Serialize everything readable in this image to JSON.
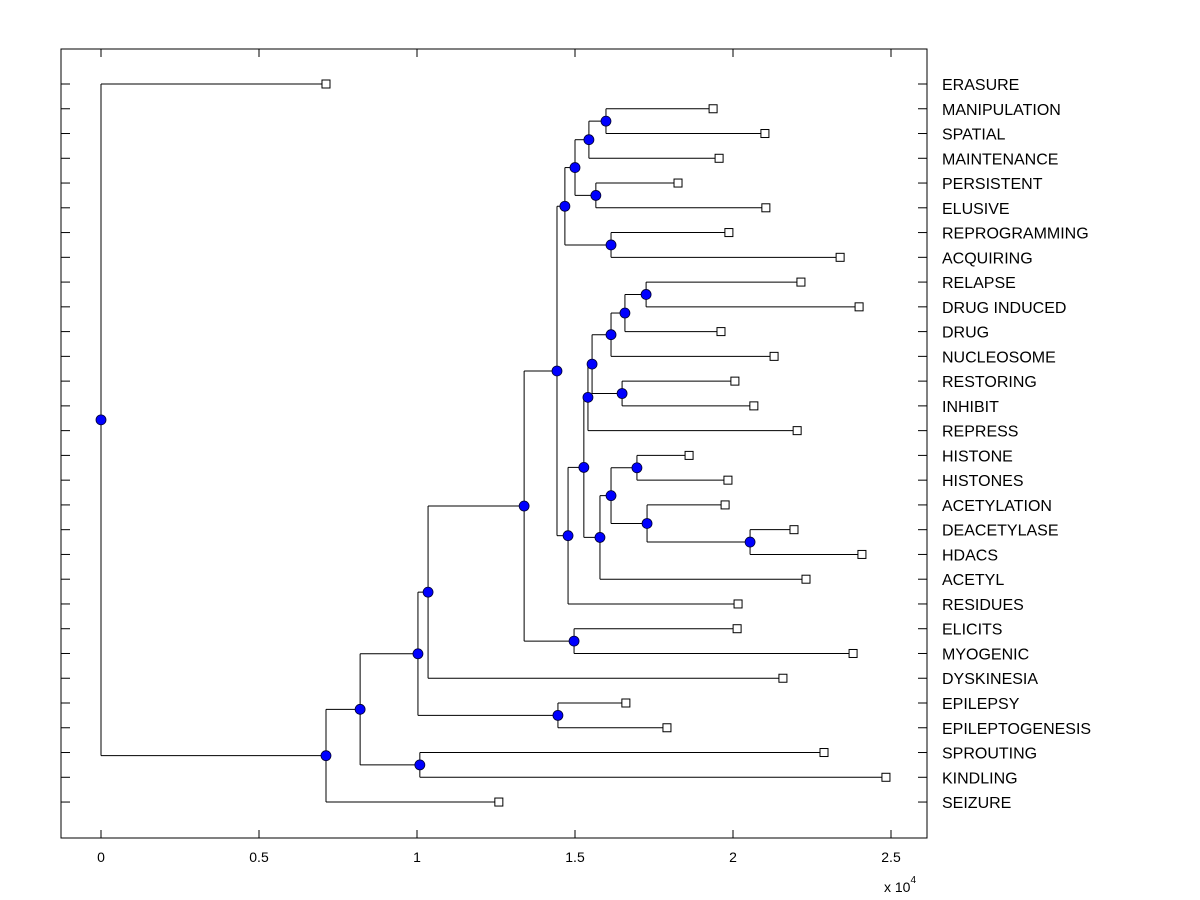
{
  "chart_data": {
    "type": "dendrogram",
    "title": "",
    "xlabel": "",
    "ylabel": "",
    "x_multiplier_label": "x 10",
    "x_multiplier_exponent": "4",
    "xlim": [
      -0.125,
      2.6
    ],
    "xticks": [
      0,
      0.5,
      1,
      1.5,
      2,
      2.5
    ],
    "xtick_labels": [
      "0",
      "0.5",
      "1",
      "1.5",
      "2",
      "2.5"
    ],
    "grid": false,
    "node_marker_color": "#0000ff",
    "leaf_marker": "open-square",
    "leaves": [
      {
        "label": "ERASURE",
        "x": 0.712
      },
      {
        "label": "MANIPULATION",
        "x": 1.937
      },
      {
        "label": "SPATIAL",
        "x": 2.101
      },
      {
        "label": "MAINTENANCE",
        "x": 1.956
      },
      {
        "label": "PERSISTENT",
        "x": 1.826
      },
      {
        "label": "ELUSIVE",
        "x": 2.104
      },
      {
        "label": "REPROGRAMMING",
        "x": 1.987
      },
      {
        "label": "ACQUIRING",
        "x": 2.339
      },
      {
        "label": "RELAPSE",
        "x": 2.215
      },
      {
        "label": "DRUG INDUCED",
        "x": 2.399
      },
      {
        "label": "DRUG",
        "x": 1.962
      },
      {
        "label": "NUCLEOSOME",
        "x": 2.13
      },
      {
        "label": "RESTORING",
        "x": 2.006
      },
      {
        "label": "INHIBIT",
        "x": 2.066
      },
      {
        "label": "REPRESS",
        "x": 2.203
      },
      {
        "label": "HISTONE",
        "x": 1.861
      },
      {
        "label": "HISTONES",
        "x": 1.984
      },
      {
        "label": "ACETYLATION",
        "x": 1.975
      },
      {
        "label": "DEACETYLASE",
        "x": 2.193
      },
      {
        "label": "HDACS",
        "x": 2.408
      },
      {
        "label": "ACETYL",
        "x": 2.231
      },
      {
        "label": "RESIDUES",
        "x": 2.016
      },
      {
        "label": "ELICITS",
        "x": 2.013
      },
      {
        "label": "MYOGENIC",
        "x": 2.38
      },
      {
        "label": "DYSKINESIA",
        "x": 2.158
      },
      {
        "label": "EPILEPSY",
        "x": 1.661
      },
      {
        "label": "EPILEPTOGENESIS",
        "x": 1.791
      },
      {
        "label": "SPROUTING",
        "x": 2.288
      },
      {
        "label": "KINDLING",
        "x": 2.484
      },
      {
        "label": "SEIZURE",
        "x": 1.259
      }
    ],
    "nodes": [
      {
        "id": "n1",
        "x": 1.598,
        "children": [
          "MANIPULATION",
          "SPATIAL"
        ]
      },
      {
        "id": "n2",
        "x": 1.544,
        "children": [
          "n1",
          "MAINTENANCE"
        ]
      },
      {
        "id": "n3",
        "x": 1.566,
        "children": [
          "PERSISTENT",
          "ELUSIVE"
        ]
      },
      {
        "id": "n4",
        "x": 1.5,
        "children": [
          "n2",
          "n3"
        ]
      },
      {
        "id": "n5",
        "x": 1.614,
        "children": [
          "REPROGRAMMING",
          "ACQUIRING"
        ]
      },
      {
        "id": "n6",
        "x": 1.468,
        "children": [
          "n4",
          "n5"
        ]
      },
      {
        "id": "n7",
        "x": 1.725,
        "children": [
          "RELAPSE",
          "DRUG INDUCED"
        ]
      },
      {
        "id": "n8",
        "x": 1.658,
        "children": [
          "n7",
          "DRUG"
        ]
      },
      {
        "id": "n9",
        "x": 1.614,
        "children": [
          "n8",
          "NUCLEOSOME"
        ]
      },
      {
        "id": "n10",
        "x": 1.649,
        "children": [
          "RESTORING",
          "INHIBIT"
        ]
      },
      {
        "id": "n11",
        "x": 1.554,
        "children": [
          "n9",
          "n10"
        ]
      },
      {
        "id": "n12",
        "x": 1.541,
        "children": [
          "n11",
          "REPRESS"
        ]
      },
      {
        "id": "n13",
        "x": 1.696,
        "children": [
          "HISTONE",
          "HISTONES"
        ]
      },
      {
        "id": "n14",
        "x": 2.054,
        "children": [
          "DEACETYLASE",
          "HDACS"
        ]
      },
      {
        "id": "n15",
        "x": 1.728,
        "children": [
          "ACETYLATION",
          "n14"
        ]
      },
      {
        "id": "n16",
        "x": 1.614,
        "children": [
          "n13",
          "n15"
        ]
      },
      {
        "id": "n17",
        "x": 1.579,
        "children": [
          "n16",
          "ACETYL"
        ]
      },
      {
        "id": "n18",
        "x": 1.528,
        "children": [
          "n12",
          "n17"
        ]
      },
      {
        "id": "n19",
        "x": 1.478,
        "children": [
          "n18",
          "RESIDUES"
        ]
      },
      {
        "id": "n20",
        "x": 1.443,
        "children": [
          "n6",
          "n19"
        ]
      },
      {
        "id": "n21",
        "x": 1.497,
        "children": [
          "ELICITS",
          "MYOGENIC"
        ]
      },
      {
        "id": "n22",
        "x": 1.339,
        "children": [
          "n20",
          "n21"
        ]
      },
      {
        "id": "n23",
        "x": 1.035,
        "children": [
          "n22",
          "DYSKINESIA"
        ]
      },
      {
        "id": "n24",
        "x": 1.446,
        "children": [
          "EPILEPSY",
          "EPILEPTOGENESIS"
        ]
      },
      {
        "id": "n25",
        "x": 1.003,
        "children": [
          "n23",
          "n24"
        ]
      },
      {
        "id": "n26",
        "x": 1.009,
        "children": [
          "SPROUTING",
          "KINDLING"
        ]
      },
      {
        "id": "n27",
        "x": 0.82,
        "children": [
          "n25",
          "n26"
        ]
      },
      {
        "id": "n28",
        "x": 0.712,
        "children": [
          "n27",
          "SEIZURE"
        ]
      },
      {
        "id": "root",
        "x": 0.0,
        "children": [
          "ERASURE",
          "n28"
        ]
      }
    ]
  }
}
